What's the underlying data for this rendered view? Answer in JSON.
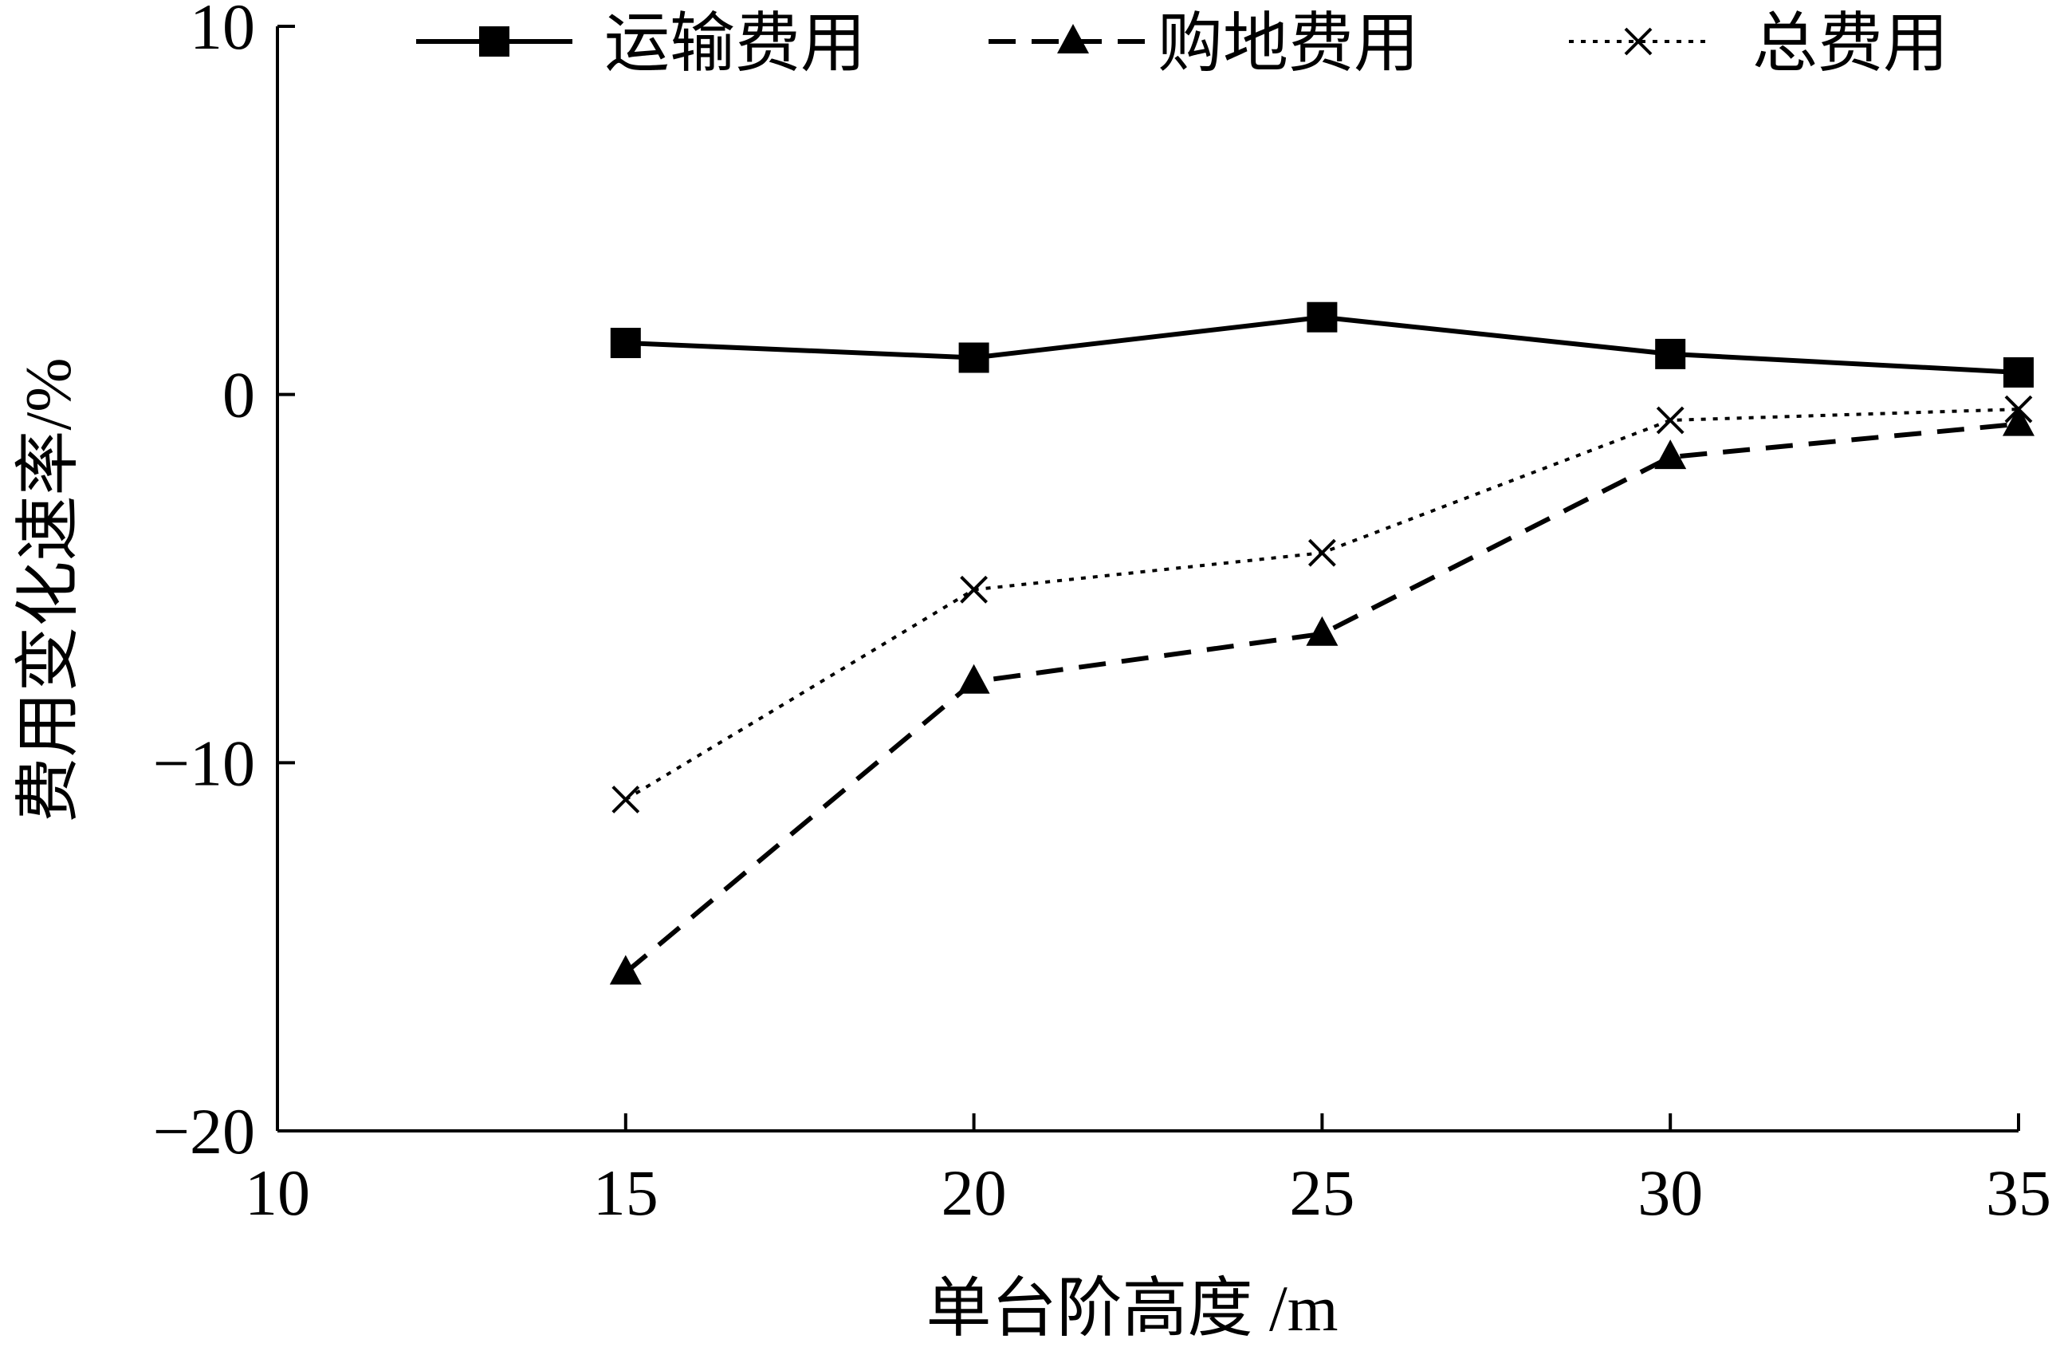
{
  "chart_data": {
    "type": "line",
    "xlabel": "单台阶高度 /m",
    "ylabel": "费用变化速率/%",
    "xlim": [
      10,
      35
    ],
    "ylim": [
      -20,
      10
    ],
    "xticks": [
      10,
      15,
      20,
      25,
      30,
      35
    ],
    "yticks": [
      10,
      0,
      -10,
      -20
    ],
    "xtick_labels": [
      "10",
      "15",
      "20",
      "25",
      "30",
      "35"
    ],
    "ytick_labels": [
      "10",
      "0",
      "−10",
      "−20"
    ],
    "grid": false,
    "legend_position": "top",
    "x": [
      15,
      20,
      25,
      30,
      35
    ],
    "series": [
      {
        "name": "运输费用",
        "marker": "square",
        "line": "solid",
        "values": [
          1.4,
          1.0,
          2.1,
          1.1,
          0.6
        ]
      },
      {
        "name": "购地费用",
        "marker": "triangle",
        "line": "dashed",
        "values": [
          -15.7,
          -7.8,
          -6.5,
          -1.7,
          -0.8
        ]
      },
      {
        "name": "总费用",
        "marker": "x",
        "line": "dotted",
        "values": [
          -11.0,
          -5.3,
          -4.3,
          -0.7,
          -0.4
        ]
      }
    ]
  }
}
